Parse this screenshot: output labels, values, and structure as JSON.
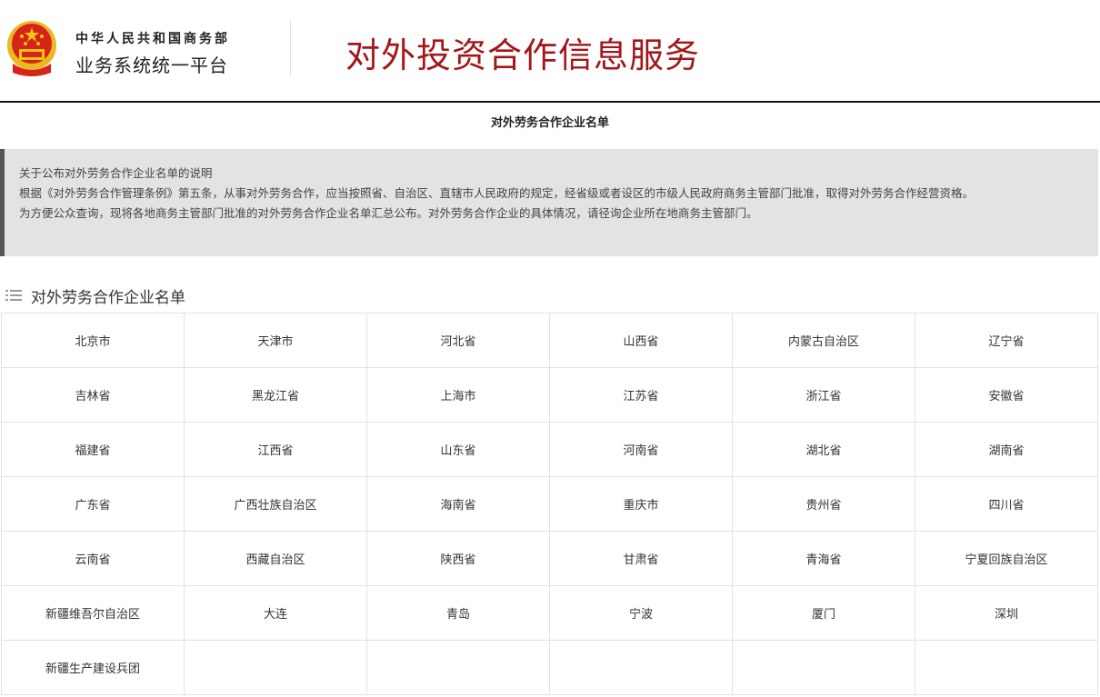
{
  "header": {
    "org": "中华人民共和国商务部",
    "platform": "业务系统统一平台",
    "site_title": "对外投资合作信息服务"
  },
  "page_subtitle": "对外劳务合作企业名单",
  "notice": {
    "lines": [
      "关于公布对外劳务合作企业名单的说明",
      "根据《对外劳务合作管理条例》第五条，从事对外劳务合作，应当按照省、自治区、直辖市人民政府的规定，经省级或者设区的市级人民政府商务主管部门批准，取得对外劳务合作经营资格。",
      "为方便公众查询，现将各地商务主管部门批准的对外劳务合作企业名单汇总公布。对外劳务合作企业的具体情况，请径询企业所在地商务主管部门。"
    ]
  },
  "section": {
    "title": "对外劳务合作企业名单",
    "icon": "list-icon"
  },
  "regions": [
    "北京市",
    "天津市",
    "河北省",
    "山西省",
    "内蒙古自治区",
    "辽宁省",
    "吉林省",
    "黑龙江省",
    "上海市",
    "江苏省",
    "浙江省",
    "安徽省",
    "福建省",
    "江西省",
    "山东省",
    "河南省",
    "湖北省",
    "湖南省",
    "广东省",
    "广西壮族自治区",
    "海南省",
    "重庆市",
    "贵州省",
    "四川省",
    "云南省",
    "西藏自治区",
    "陕西省",
    "甘肃省",
    "青海省",
    "宁夏回族自治区",
    "新疆维吾尔自治区",
    "大连",
    "青岛",
    "宁波",
    "厦门",
    "深圳",
    "新疆生产建设兵团",
    "",
    "",
    "",
    "",
    ""
  ],
  "colors": {
    "title_red": "#a3171b",
    "notice_bg": "#e3e3e3"
  }
}
